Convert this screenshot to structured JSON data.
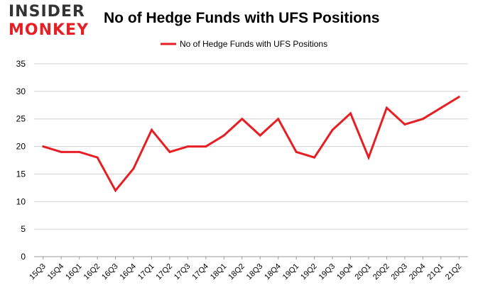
{
  "logo": {
    "line1": "INSIDER",
    "line2": "MONKEY",
    "accent_color": "#e51f24"
  },
  "chart_data": {
    "type": "line",
    "title": "No of Hedge Funds with UFS Positions",
    "xlabel": "",
    "ylabel": "",
    "categories": [
      "15Q3",
      "15Q4",
      "16Q1",
      "16Q2",
      "16Q3",
      "16Q4",
      "17Q1",
      "17Q2",
      "17Q3",
      "17Q4",
      "18Q1",
      "18Q2",
      "18Q3",
      "18Q4",
      "19Q1",
      "19Q2",
      "19Q3",
      "19Q4",
      "20Q1",
      "20Q2",
      "20Q3",
      "20Q4",
      "21Q1",
      "21Q2"
    ],
    "series": [
      {
        "name": "No of Hedge Funds with UFS Positions",
        "color": "#e51f24",
        "values": [
          20,
          19,
          19,
          18,
          12,
          16,
          23,
          19,
          20,
          20,
          22,
          25,
          22,
          25,
          19,
          18,
          23,
          26,
          18,
          27,
          24,
          25,
          27,
          29
        ]
      }
    ],
    "ylim": [
      0,
      35
    ],
    "yticks": [
      0,
      5,
      10,
      15,
      20,
      25,
      30,
      35
    ],
    "grid": true,
    "legend_position": "top-center"
  }
}
